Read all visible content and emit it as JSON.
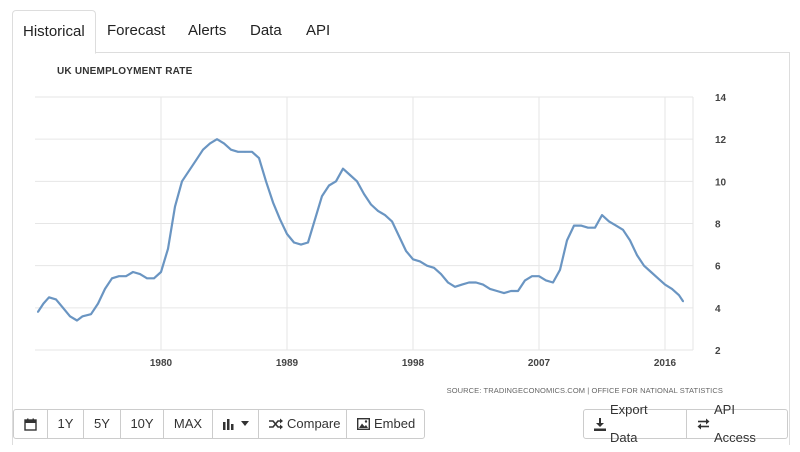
{
  "tabs": [
    "Historical",
    "Forecast",
    "Alerts",
    "Data",
    "API"
  ],
  "active_tab": "Historical",
  "source_text": "SOURCE: TRADINGECONOMICS.COM | OFFICE FOR NATIONAL STATISTICS",
  "toolbar": {
    "range_buttons": [
      "1Y",
      "5Y",
      "10Y",
      "MAX"
    ],
    "compare_label": "Compare",
    "embed_label": "Embed",
    "export_label": "Export Data",
    "api_label": "API Access"
  },
  "icons": {
    "calendar": "calendar-icon",
    "chart_type": "bar-chart-icon",
    "compare": "shuffle-icon",
    "embed": "image-icon",
    "export": "download-icon",
    "api": "exchange-icon"
  },
  "chart_data": {
    "type": "line",
    "title": "UK UNEMPLOYMENT RATE",
    "xlabel": "",
    "ylabel": "",
    "xlim": [
      1971,
      2018
    ],
    "ylim": [
      2,
      14
    ],
    "x_ticks": [
      1980,
      1989,
      1998,
      2007,
      2016
    ],
    "y_ticks": [
      2,
      4,
      6,
      8,
      10,
      12,
      14
    ],
    "y_axis_position": "right",
    "grid": true,
    "line_color": "#6a95c2",
    "series": [
      {
        "x": [
          1971.2,
          1971.6,
          1972.0,
          1972.5,
          1973.0,
          1973.5,
          1974.0,
          1974.4,
          1975.0,
          1975.5,
          1976.0,
          1976.5,
          1977.0,
          1977.5,
          1978.0,
          1978.5,
          1979.0,
          1979.5,
          1980.0,
          1980.5,
          1981.0,
          1981.5,
          1982.0,
          1982.5,
          1983.0,
          1983.5,
          1984.0,
          1984.5,
          1985.0,
          1985.5,
          1986.0,
          1986.5,
          1987.0,
          1987.5,
          1988.0,
          1988.5,
          1989.0,
          1989.5,
          1990.0,
          1990.5,
          1991.0,
          1991.5,
          1992.0,
          1992.5,
          1993.0,
          1993.5,
          1994.0,
          1994.5,
          1995.0,
          1995.5,
          1996.0,
          1996.5,
          1997.0,
          1997.5,
          1998.0,
          1998.5,
          1999.0,
          1999.5,
          2000.0,
          2000.5,
          2001.0,
          2001.5,
          2002.0,
          2002.5,
          2003.0,
          2003.5,
          2004.0,
          2004.5,
          2005.0,
          2005.5,
          2006.0,
          2006.5,
          2007.0,
          2007.5,
          2008.0,
          2008.5,
          2009.0,
          2009.5,
          2010.0,
          2010.5,
          2011.0,
          2011.5,
          2012.0,
          2012.5,
          2013.0,
          2013.5,
          2014.0,
          2014.5,
          2015.0,
          2015.5,
          2016.0,
          2016.5,
          2017.0,
          2017.3
        ],
        "values": [
          3.8,
          4.2,
          4.5,
          4.4,
          4.0,
          3.6,
          3.4,
          3.6,
          3.7,
          4.2,
          4.9,
          5.4,
          5.5,
          5.5,
          5.7,
          5.6,
          5.4,
          5.4,
          5.7,
          6.8,
          8.8,
          10.0,
          10.5,
          11.0,
          11.5,
          11.8,
          12.0,
          11.8,
          11.5,
          11.4,
          11.4,
          11.4,
          11.1,
          10.0,
          9.0,
          8.2,
          7.5,
          7.1,
          7.0,
          7.1,
          8.2,
          9.3,
          9.8,
          10.0,
          10.6,
          10.3,
          10.0,
          9.4,
          8.9,
          8.6,
          8.4,
          8.1,
          7.4,
          6.7,
          6.3,
          6.2,
          6.0,
          5.9,
          5.6,
          5.2,
          5.0,
          5.1,
          5.2,
          5.2,
          5.1,
          4.9,
          4.8,
          4.7,
          4.8,
          4.8,
          5.3,
          5.5,
          5.5,
          5.3,
          5.2,
          5.8,
          7.2,
          7.9,
          7.9,
          7.8,
          7.8,
          8.4,
          8.1,
          7.9,
          7.7,
          7.2,
          6.5,
          6.0,
          5.7,
          5.4,
          5.1,
          4.9,
          4.6,
          4.3
        ]
      }
    ]
  }
}
